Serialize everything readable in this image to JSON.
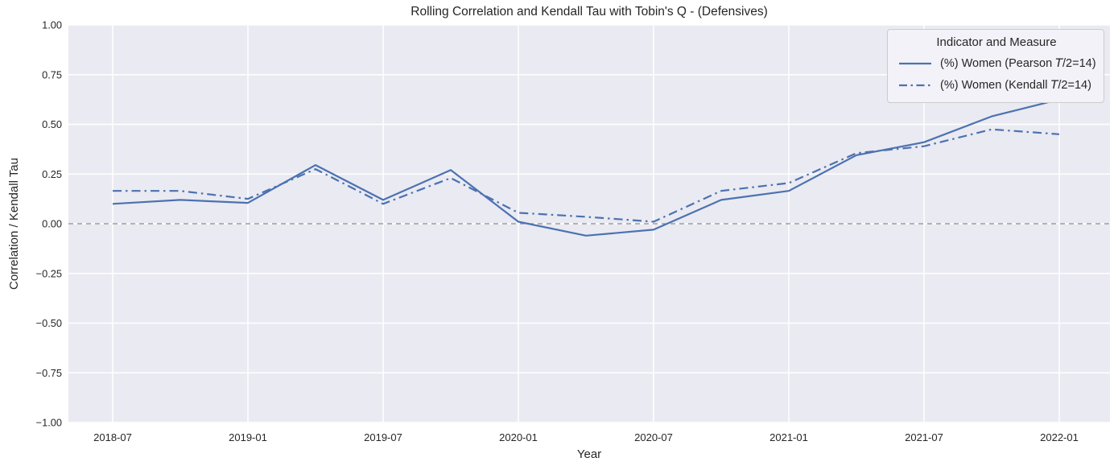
{
  "figure_title": "Rolling Correlation and Kendall Tau with Tobin's Q - (Defensives)",
  "chart_data": {
    "type": "line",
    "title": "Rolling Correlation and Kendall Tau with Tobin's Q - (Defensives)",
    "xlabel": "Year",
    "ylabel": "Correlation / Kendall Tau",
    "x": [
      "2018-07",
      "2018-10",
      "2019-01",
      "2019-04",
      "2019-07",
      "2019-10",
      "2020-01",
      "2020-04",
      "2020-07",
      "2020-10",
      "2021-01",
      "2021-04",
      "2021-07",
      "2021-10",
      "2022-01"
    ],
    "series": [
      {
        "name": "(%) Women (Pearson T/2=14)",
        "linestyle": "solid",
        "color": "#4c72b0",
        "values": [
          0.1,
          0.12,
          0.105,
          0.295,
          0.12,
          0.27,
          0.01,
          -0.06,
          -0.03,
          0.12,
          0.165,
          0.345,
          0.41,
          0.54,
          0.625
        ]
      },
      {
        "name": "(%) Women (Kendall T/2=14)",
        "linestyle": "dashdot",
        "color": "#4c72b0",
        "values": [
          0.165,
          0.165,
          0.125,
          0.275,
          0.1,
          0.23,
          0.055,
          0.035,
          0.01,
          0.165,
          0.205,
          0.355,
          0.39,
          0.475,
          0.45
        ]
      }
    ],
    "ylim": [
      -1.0,
      1.0
    ],
    "yticks": [
      1.0,
      0.75,
      0.5,
      0.25,
      0.0,
      -0.25,
      -0.5,
      -0.75,
      -1.0
    ],
    "ytick_labels": [
      "1.00",
      "0.75",
      "0.50",
      "0.25",
      "0.00",
      "−0.25",
      "−0.50",
      "−0.75",
      "−1.00"
    ],
    "xticks_every": 2,
    "xtick_labels": [
      "2018-07",
      "2019-01",
      "2019-07",
      "2020-01",
      "2020-07",
      "2021-01",
      "2021-07",
      "2022-01"
    ],
    "grid": true,
    "zero_line": true,
    "legend_position": "upper right"
  },
  "axis": {
    "xlabel": "Year",
    "ylabel": "Correlation / Kendall Tau"
  },
  "legend": {
    "title": "Indicator and Measure",
    "items": [
      {
        "prefix": "(%) Women (Pearson ",
        "math_var": "T",
        "suffix": "/2=14)",
        "linestyle": "solid"
      },
      {
        "prefix": "(%) Women (Kendall ",
        "math_var": "T",
        "suffix": "/2=14)",
        "linestyle": "dashdot"
      }
    ]
  },
  "colors": {
    "line_blue": "#4c72b0",
    "plot_background": "#eaeaf2",
    "gridline": "#ffffff",
    "zero_line": "#8a8a8a",
    "text": "#262626",
    "legend_border": "#cccccc"
  }
}
